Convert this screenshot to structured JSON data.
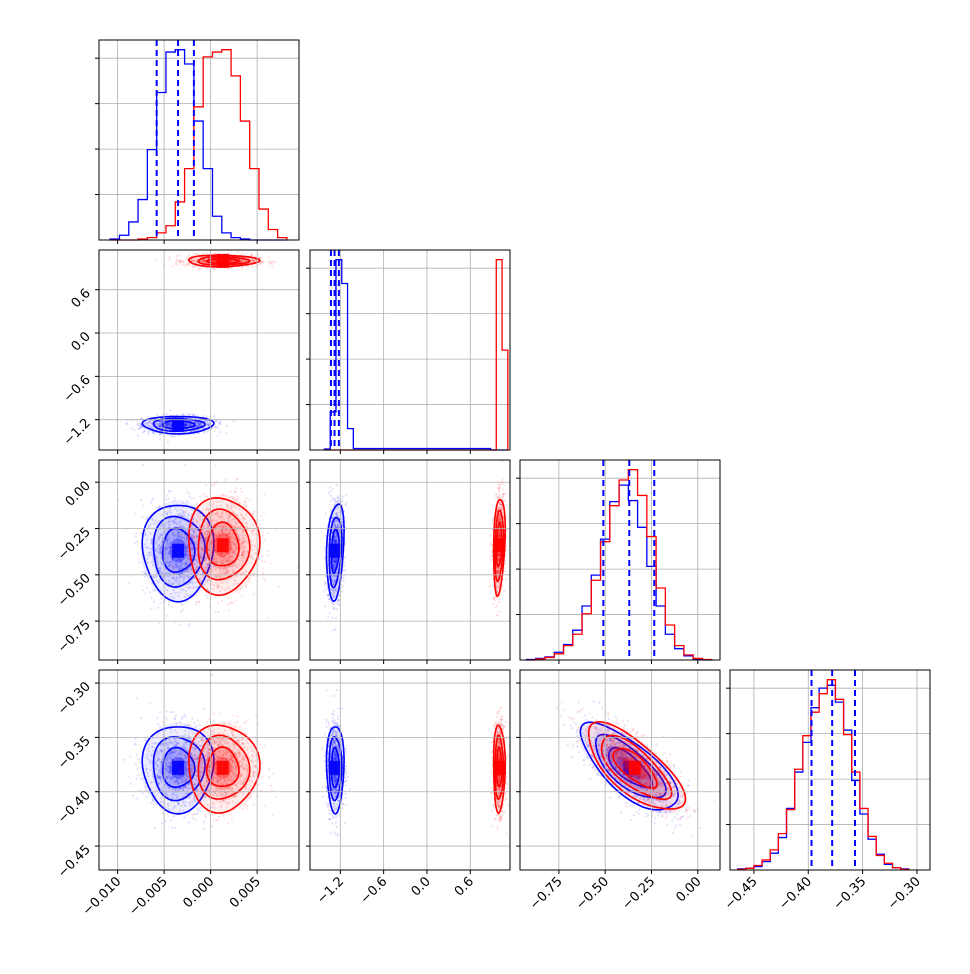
{
  "chart_data": {
    "type": "corner",
    "parameters": [
      {
        "id": "p0",
        "range": [
          -0.012,
          0.0095
        ],
        "ticks": [
          -0.01,
          -0.005,
          0.0,
          0.005
        ],
        "tick_labels": [
          "−0.010",
          "−0.005",
          "0.000",
          "0.005"
        ]
      },
      {
        "id": "p1",
        "range": [
          -1.62,
          1.15
        ],
        "ticks": [
          -1.2,
          -0.6,
          0.0,
          0.6
        ],
        "tick_labels": [
          "−1.2",
          "−0.6",
          "0.0",
          "0.6"
        ]
      },
      {
        "id": "p2",
        "range": [
          -0.96,
          0.12
        ],
        "ticks": [
          -0.75,
          -0.5,
          -0.25,
          0.0
        ],
        "tick_labels": [
          "−0.75",
          "−0.50",
          "−0.25",
          "0.00"
        ]
      },
      {
        "id": "p3",
        "range": [
          -0.472,
          -0.288
        ],
        "ticks": [
          -0.45,
          -0.4,
          -0.35,
          -0.3
        ],
        "tick_labels": [
          "−0.45",
          "−0.40",
          "−0.35",
          "−0.30"
        ]
      }
    ],
    "series": [
      {
        "color": "#0000ff",
        "mean": [
          -0.0035,
          -1.27,
          -0.37,
          -0.378
        ],
        "sd": [
          0.0019,
          0.06,
          0.13,
          0.02
        ]
      },
      {
        "color": "#ff0000",
        "mean": [
          0.0013,
          1.0,
          -0.34,
          -0.378
        ],
        "sd": [
          0.0019,
          0.04,
          0.13,
          0.02
        ]
      }
    ],
    "diagonal_histograms": [
      {
        "bin_edges": [
          -0.0108,
          -0.0098,
          -0.0088,
          -0.0078,
          -0.0068,
          -0.0058,
          -0.0048,
          -0.0038,
          -0.0028,
          -0.0018,
          -0.0008,
          0.0002,
          0.0012,
          0.0022,
          0.0032,
          0.0042,
          0.0052,
          0.0062,
          0.0072,
          0.0082
        ],
        "counts": {
          "blue": [
            2,
            10,
            38,
            85,
            190,
            310,
            395,
            400,
            370,
            250,
            150,
            50,
            15,
            5,
            2,
            0,
            0,
            0,
            0
          ],
          "red": [
            0,
            0,
            0,
            2,
            5,
            15,
            30,
            80,
            150,
            280,
            385,
            395,
            400,
            345,
            250,
            150,
            65,
            22,
            5
          ]
        },
        "quantile_lines": [
          -0.0058,
          -0.0035,
          -0.0018
        ]
      },
      {
        "bin_edges": [
          -1.42,
          -1.34,
          -1.26,
          -1.18,
          -1.1,
          -1.02,
          0.88,
          0.96,
          1.04,
          1.12
        ],
        "counts": {
          "blue": [
            2,
            80,
            400,
            350,
            45,
            3,
            0,
            0,
            0
          ],
          "red": [
            0,
            0,
            0,
            0,
            0,
            0,
            0,
            400,
            210
          ]
        },
        "quantile_lines": [
          -1.33,
          -1.28,
          -1.22
        ]
      },
      {
        "bin_edges": [
          -0.925,
          -0.875,
          -0.825,
          -0.775,
          -0.725,
          -0.675,
          -0.625,
          -0.575,
          -0.525,
          -0.475,
          -0.425,
          -0.375,
          -0.325,
          -0.275,
          -0.225,
          -0.175,
          -0.125,
          -0.075,
          -0.025,
          0.025,
          0.075
        ],
        "counts": {
          "blue": [
            1,
            3,
            6,
            15,
            30,
            58,
            105,
            165,
            235,
            308,
            340,
            310,
            258,
            182,
            105,
            50,
            22,
            8,
            2,
            0
          ],
          "red": [
            0,
            2,
            5,
            12,
            28,
            50,
            90,
            155,
            230,
            300,
            350,
            370,
            320,
            240,
            140,
            68,
            28,
            10,
            3,
            1
          ]
        },
        "quantile_lines": [
          -0.51,
          -0.37,
          -0.235
        ]
      },
      {
        "bin_edges": [
          -0.465,
          -0.4575,
          -0.45,
          -0.4425,
          -0.435,
          -0.4275,
          -0.42,
          -0.4125,
          -0.405,
          -0.3975,
          -0.39,
          -0.3825,
          -0.375,
          -0.3675,
          -0.36,
          -0.3525,
          -0.345,
          -0.3375,
          -0.33,
          -0.3225,
          -0.315,
          -0.3075
        ],
        "counts": {
          "blue": [
            2,
            3,
            6,
            15,
            30,
            58,
            110,
            175,
            228,
            290,
            325,
            330,
            300,
            250,
            160,
            100,
            55,
            28,
            10,
            4,
            2
          ],
          "red": [
            1,
            3,
            8,
            18,
            36,
            65,
            108,
            180,
            240,
            282,
            315,
            340,
            305,
            242,
            175,
            110,
            60,
            26,
            12,
            4,
            1
          ]
        },
        "quantile_lines": [
          -0.397,
          -0.378,
          -0.357
        ]
      }
    ],
    "grid": true,
    "legend": "none"
  }
}
